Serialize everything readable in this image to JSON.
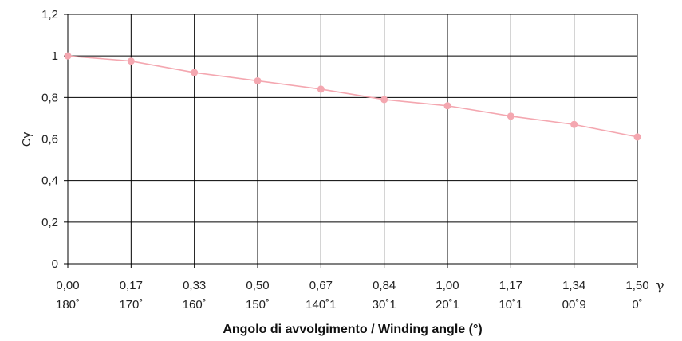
{
  "chart_data": {
    "type": "line",
    "title": "",
    "xlabel": "Angolo di avvolgimento / Winding angle (°)",
    "ylabel": "Cγ",
    "x_unit_symbol": "γ",
    "categories": [
      "0,00",
      "0,17",
      "0,33",
      "0,50",
      "0,67",
      "0,84",
      "1,00",
      "1,17",
      "1,34",
      "1,50"
    ],
    "categories_secondary": [
      "180˚",
      "170˚",
      "160˚",
      "150˚",
      "140˚1",
      "30˚1",
      "20˚1",
      "10˚1",
      "00˚9",
      "0˚"
    ],
    "y_ticks": [
      "0",
      "0,2",
      "0,4",
      "0,6",
      "0,8",
      "1",
      "1,2"
    ],
    "ylim": [
      0,
      1.2
    ],
    "grid": true,
    "series": [
      {
        "values": [
          1.0,
          0.975,
          0.92,
          0.88,
          0.84,
          0.79,
          0.76,
          0.71,
          0.67,
          0.61
        ],
        "color": "#f4a7b0"
      }
    ]
  }
}
